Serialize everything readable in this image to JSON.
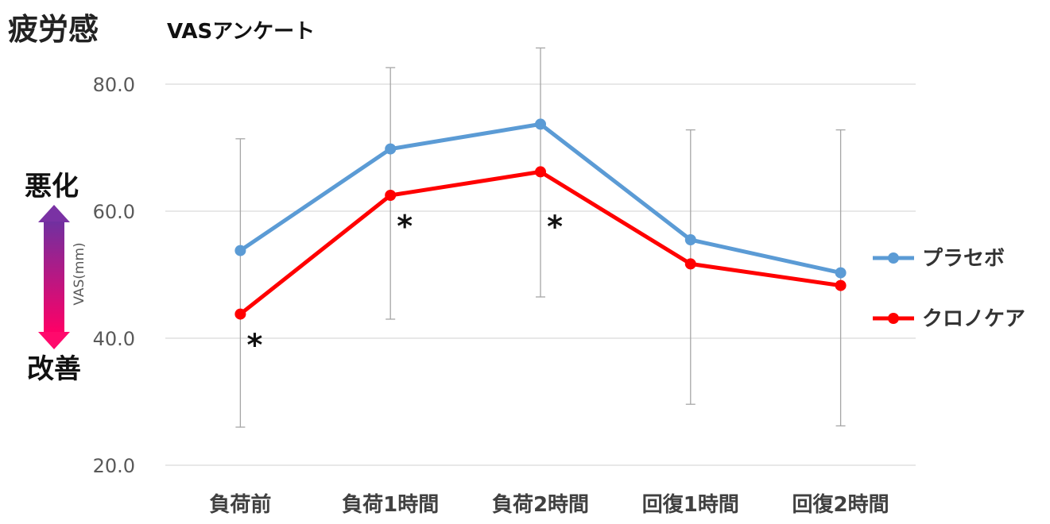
{
  "chart_data": {
    "type": "line",
    "title": "疲労感",
    "subtitle": "VASアンケート",
    "ylabel": "VAS(mm)",
    "ylim": [
      20,
      80
    ],
    "yticks": [
      "20.0",
      "40.0",
      "60.0",
      "80.0"
    ],
    "categories": [
      "負荷前",
      "負荷1時間",
      "負荷2時間",
      "回復1時間",
      "回復2時間"
    ],
    "series": [
      {
        "name": "プラセボ",
        "color": "#5b9bd5",
        "values": [
          53.8,
          69.8,
          73.7,
          55.5,
          50.3
        ],
        "error_low": [
          26.0,
          43.0,
          46.5,
          29.6,
          26.2
        ],
        "error_high": [
          71.4,
          82.6,
          85.7,
          72.8,
          72.8
        ]
      },
      {
        "name": "クロノケア",
        "color": "#ff0000",
        "values": [
          43.8,
          62.5,
          66.2,
          51.7,
          48.3
        ]
      }
    ],
    "significance": [
      {
        "category": "負荷前",
        "mark": "*"
      },
      {
        "category": "負荷1時間",
        "mark": "*"
      },
      {
        "category": "負荷2時間",
        "mark": "*"
      }
    ],
    "side_labels": {
      "top": "悪化",
      "bottom": "改善"
    },
    "grid": true,
    "legend": "right"
  }
}
